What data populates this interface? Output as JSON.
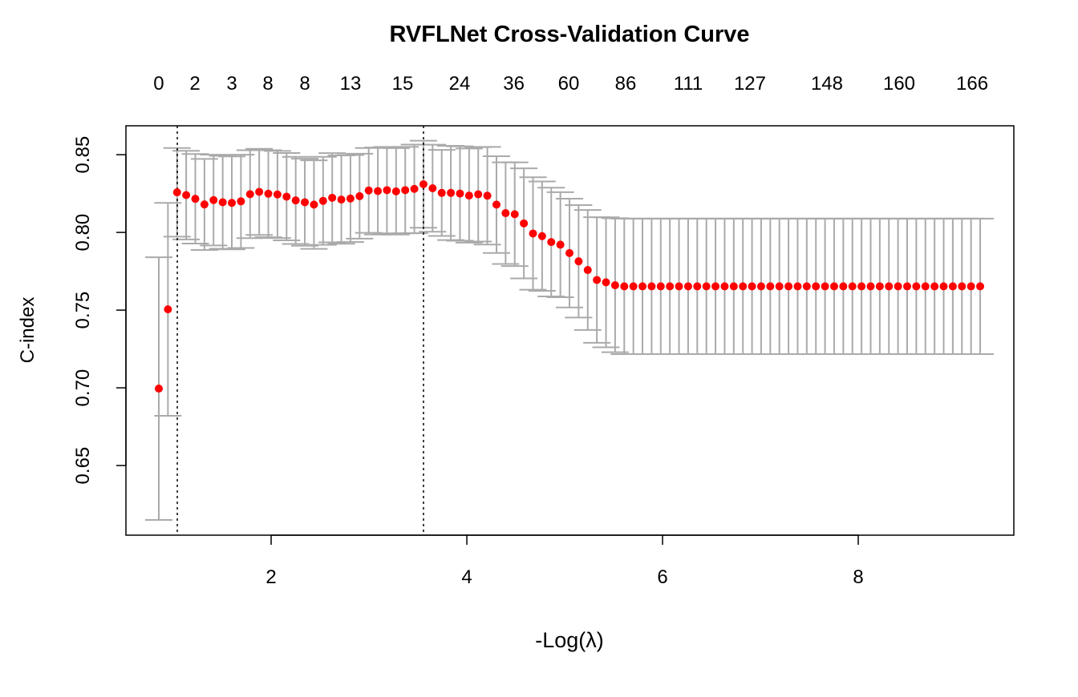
{
  "chart_data": {
    "type": "scatter",
    "title": "RVFLNet Cross-Validation Curve",
    "xlabel": "-Log(λ)",
    "ylabel": "C-index",
    "xlim": [
      0.516,
      9.59
    ],
    "ylim": [
      0.6052,
      0.8686
    ],
    "x_ticks": [
      "2",
      "4",
      "6",
      "8"
    ],
    "x_tick_values": [
      2,
      4,
      6,
      8
    ],
    "y_ticks": [
      "0.65",
      "0.70",
      "0.75",
      "0.80",
      "0.85"
    ],
    "y_tick_values": [
      0.65,
      0.7,
      0.75,
      0.8,
      0.85
    ],
    "top_axis_labels": [
      "0",
      "2",
      "3",
      "8",
      "8",
      "13",
      "15",
      "24",
      "36",
      "60",
      "86",
      "111",
      "127",
      "148",
      "160",
      "166"
    ],
    "top_axis_positions": [
      0.852,
      1.221,
      1.598,
      1.967,
      2.344,
      2.811,
      3.344,
      3.926,
      4.48,
      5.041,
      5.623,
      6.262,
      6.893,
      7.68,
      8.418,
      9.164
    ],
    "x_start": 0.852,
    "x_end": 9.246,
    "vlines": [
      1.041,
      3.557
    ],
    "grid": false,
    "point_color": "#ff0000",
    "errorbar_color": "#aaaaaa",
    "y": [
      0.6995,
      0.7505,
      0.8258,
      0.824,
      0.8216,
      0.818,
      0.8208,
      0.8194,
      0.819,
      0.82,
      0.8246,
      0.8261,
      0.8249,
      0.8244,
      0.823,
      0.8206,
      0.8194,
      0.8179,
      0.8203,
      0.8223,
      0.8211,
      0.8218,
      0.8233,
      0.827,
      0.8266,
      0.8272,
      0.8264,
      0.8272,
      0.828,
      0.831,
      0.8284,
      0.8254,
      0.8254,
      0.825,
      0.8237,
      0.8245,
      0.8236,
      0.8179,
      0.8124,
      0.8117,
      0.8058,
      0.7993,
      0.7976,
      0.7938,
      0.7921,
      0.7867,
      0.7814,
      0.7758,
      0.7694,
      0.7679,
      0.766,
      0.7653,
      0.7653,
      0.7653,
      0.7653,
      0.7653,
      0.7653,
      0.7653,
      0.7653,
      0.7653,
      0.7653,
      0.7653,
      0.7653,
      0.7653,
      0.7653,
      0.7653,
      0.7653,
      0.7653,
      0.7653,
      0.7653,
      0.7653,
      0.7653,
      0.7653,
      0.7653,
      0.7653,
      0.7653,
      0.7653,
      0.7653,
      0.7653,
      0.7653,
      0.7653,
      0.7653,
      0.7653,
      0.7653,
      0.7653,
      0.7653,
      0.7653,
      0.7653,
      0.7653,
      0.7653,
      0.7653
    ],
    "se": [
      0.0845,
      0.0685,
      0.0285,
      0.0285,
      0.0288,
      0.0293,
      0.0292,
      0.0299,
      0.0299,
      0.03,
      0.0283,
      0.0277,
      0.028,
      0.028,
      0.0281,
      0.028,
      0.028,
      0.0285,
      0.0283,
      0.0287,
      0.0284,
      0.028,
      0.0273,
      0.0273,
      0.028,
      0.0278,
      0.0278,
      0.0278,
      0.0285,
      0.028,
      0.028,
      0.0277,
      0.0303,
      0.0304,
      0.0303,
      0.0304,
      0.0314,
      0.0311,
      0.0327,
      0.0334,
      0.0354,
      0.0362,
      0.0352,
      0.035,
      0.0338,
      0.035,
      0.0362,
      0.0386,
      0.0404,
      0.0418,
      0.0431,
      0.0436,
      0.0436,
      0.0436,
      0.0436,
      0.0436,
      0.0436,
      0.0436,
      0.0436,
      0.0436,
      0.0436,
      0.0436,
      0.0436,
      0.0436,
      0.0436,
      0.0436,
      0.0436,
      0.0436,
      0.0436,
      0.0436,
      0.0436,
      0.0436,
      0.0436,
      0.0436,
      0.0436,
      0.0436,
      0.0436,
      0.0436,
      0.0436,
      0.0436,
      0.0436,
      0.0436,
      0.0436,
      0.0436,
      0.0436,
      0.0436,
      0.0436,
      0.0436,
      0.0436,
      0.0436,
      0.0436
    ]
  }
}
